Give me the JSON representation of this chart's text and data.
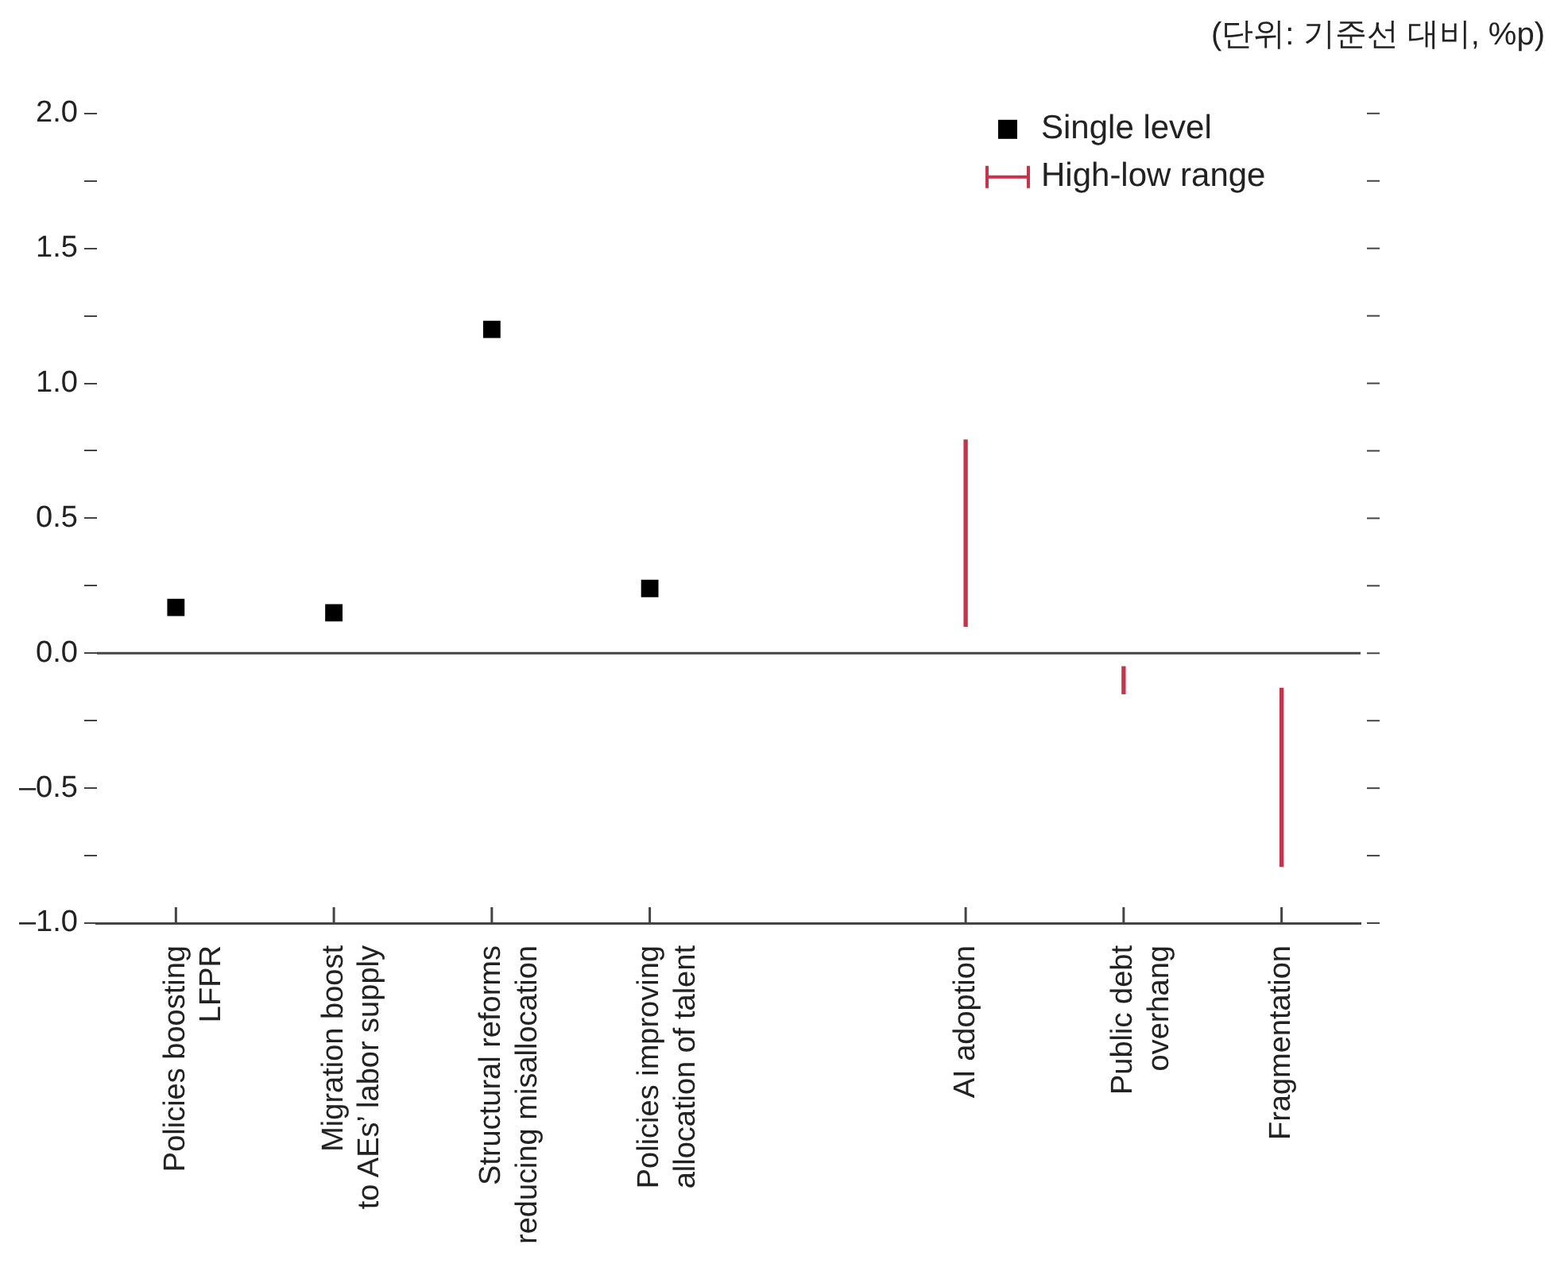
{
  "chart_data": {
    "type": "scatter",
    "annotations": [
      "(단위: 기준선 대비, %p)"
    ],
    "categories": [
      "Policies boosting\nLFPR",
      "Migration boost\nto AEs’ labor supply",
      "Structural reforms\nreducing misallocation",
      "Policies improving\nallocation of talent",
      null,
      "AI adoption",
      "Public debt\noverhang",
      "Fragmentation"
    ],
    "series": [
      {
        "name": "Single level",
        "color": "#000000",
        "values": [
          0.17,
          0.15,
          1.2,
          0.24,
          null,
          null,
          null,
          null
        ]
      },
      {
        "name": "High-low range",
        "type": "bar",
        "color": "#c8324b",
        "base": [
          null,
          null,
          null,
          null,
          null,
          0.1,
          -0.15,
          -0.79
        ],
        "values": [
          null,
          null,
          null,
          null,
          null,
          0.69,
          0.1,
          0.66
        ]
      }
    ],
    "marker": "square",
    "legend": "top right",
    "grid": false,
    "ylim": [
      -1,
      2
    ],
    "yticks": [
      {
        "value": -1,
        "label": "–1.0"
      },
      {
        "value": -0.75,
        "label": null
      },
      {
        "value": -0.5,
        "label": "–0.5"
      },
      {
        "value": -0.25,
        "label": null
      },
      {
        "value": 0,
        "label": "0.0"
      },
      {
        "value": 0.25,
        "label": null
      },
      {
        "value": 0.5,
        "label": "0.5"
      },
      {
        "value": 0.75,
        "label": null
      },
      {
        "value": 1,
        "label": "1.0"
      },
      {
        "value": 1.25,
        "label": null
      },
      {
        "value": 1.5,
        "label": "1.5"
      },
      {
        "value": 1.75,
        "label": null
      },
      {
        "value": 2,
        "label": "2.0"
      }
    ],
    "ref_lines": [
      {
        "axis": "y",
        "value": 0
      }
    ]
  }
}
